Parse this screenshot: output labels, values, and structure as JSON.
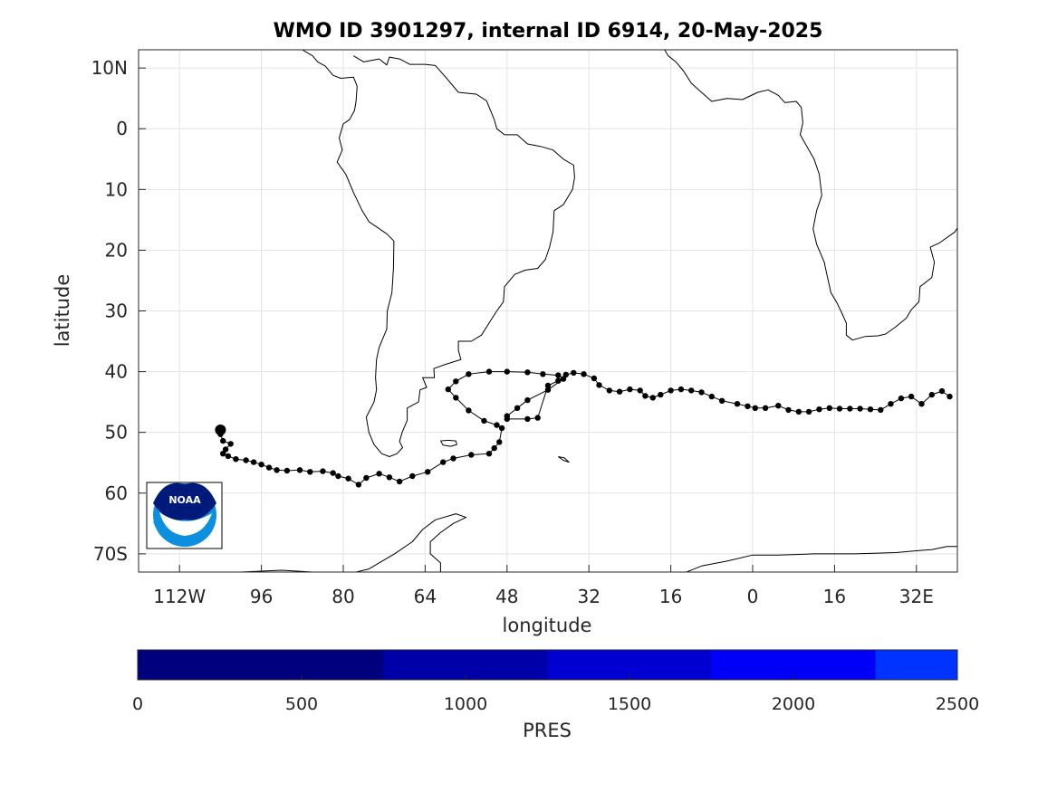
{
  "title": "WMO ID 3901297, internal ID 6914, 20-May-2025",
  "xlabel": "longitude",
  "ylabel": "latitude",
  "colors": {
    "track": "#000000",
    "coast": "#000000",
    "grid": "#e3e3e3",
    "colorbar": [
      "#00007f",
      "#0000a8",
      "#0000d1",
      "#0000f9",
      "#0033ff"
    ]
  },
  "chart_data": {
    "type": "scatter",
    "projection": "equirectangular",
    "xlim": [
      -120,
      40
    ],
    "ylim": [
      -73,
      13
    ],
    "grid": true,
    "x_ticks": [
      {
        "value": -112,
        "label": "112W"
      },
      {
        "value": -96,
        "label": "96"
      },
      {
        "value": -80,
        "label": "80"
      },
      {
        "value": -64,
        "label": "64"
      },
      {
        "value": -48,
        "label": "48"
      },
      {
        "value": -32,
        "label": "32"
      },
      {
        "value": -16,
        "label": "16"
      },
      {
        "value": 0,
        "label": "0"
      },
      {
        "value": 16,
        "label": "16"
      },
      {
        "value": 32,
        "label": "32E"
      }
    ],
    "y_ticks": [
      {
        "value": 10,
        "label": "10N"
      },
      {
        "value": 0,
        "label": "0"
      },
      {
        "value": -10,
        "label": "10"
      },
      {
        "value": -20,
        "label": "20"
      },
      {
        "value": -30,
        "label": "30"
      },
      {
        "value": -40,
        "label": "40"
      },
      {
        "value": -50,
        "label": "50"
      },
      {
        "value": -60,
        "label": "60"
      },
      {
        "value": -70,
        "label": "70S"
      }
    ],
    "float_track": {
      "lon": [
        -104,
        -104,
        -103.5,
        -102,
        -103,
        -103.5,
        -102.5,
        -101,
        -99,
        -97.5,
        -96,
        -94.5,
        -93,
        -91,
        -88.5,
        -86.5,
        -84,
        -82,
        -81,
        -79,
        -77,
        -75.5,
        -73,
        -71,
        -69,
        -66.5,
        -63.5,
        -60.5,
        -58.5,
        -55,
        -51.5,
        -50.5,
        -49.5,
        -49,
        -50,
        -52.5,
        -55.5,
        -58,
        -59.5,
        -58,
        -55.5,
        -51.5,
        -48,
        -44,
        -41,
        -38,
        -37,
        -40,
        -44,
        -46,
        -48,
        -48,
        -44,
        -42,
        -40,
        -38,
        -36.5,
        -35,
        -33,
        -31,
        -30,
        -28,
        -26,
        -24,
        -22,
        -21,
        -19.5,
        -18,
        -16,
        -14,
        -12,
        -10,
        -8,
        -6,
        -3,
        -1,
        0.5,
        2.5,
        5,
        7,
        9,
        11,
        13,
        15,
        17,
        19,
        21,
        23,
        25,
        27,
        29,
        31,
        33,
        35,
        37,
        38.5
      ],
      "lat": [
        -49.6,
        -50.3,
        -51.4,
        -51.9,
        -52.8,
        -53.5,
        -53.9,
        -54.4,
        -54.6,
        -54.9,
        -55.3,
        -55.8,
        -56.2,
        -56.3,
        -56.2,
        -56.5,
        -56.4,
        -56.7,
        -57.2,
        -57.6,
        -58.6,
        -57.5,
        -56.8,
        -57.4,
        -58.1,
        -57.2,
        -56.5,
        -54.9,
        -54.3,
        -53.7,
        -53.5,
        -52.6,
        -51.6,
        -49.3,
        -48.8,
        -48.1,
        -46.4,
        -44.3,
        -42.9,
        -41.6,
        -40.4,
        -40.0,
        -40.0,
        -40.1,
        -40.4,
        -40.6,
        -41.2,
        -43.0,
        -44.7,
        -46.0,
        -47.3,
        -47.8,
        -47.8,
        -47.6,
        -42.3,
        -41.5,
        -40.5,
        -40.2,
        -40.4,
        -41.1,
        -42.2,
        -43.1,
        -43.3,
        -42.9,
        -43.1,
        -44.0,
        -44.3,
        -43.8,
        -43.1,
        -42.9,
        -43.1,
        -43.4,
        -44.1,
        -44.8,
        -45.3,
        -45.7,
        -46.0,
        -46.0,
        -45.6,
        -46.3,
        -46.6,
        -46.6,
        -46.2,
        -46.0,
        -46.1,
        -46.1,
        -46.1,
        -46.2,
        -46.3,
        -45.3,
        -44.4,
        -44.1,
        -45.3,
        -43.8,
        -43.2,
        -44.1
      ]
    },
    "colorbar": {
      "label": "PRES",
      "range": [
        0,
        2500
      ],
      "ticks": [
        0,
        500,
        1000,
        1500,
        2000,
        2500
      ],
      "levels": [
        0,
        750,
        1250,
        1750,
        2250,
        2500
      ]
    }
  },
  "coastlines": {
    "south_america": [
      [
        -78,
        12
      ],
      [
        -76,
        11
      ],
      [
        -73,
        11.5
      ],
      [
        -71.5,
        10.5
      ],
      [
        -71,
        11.8
      ],
      [
        -69,
        11.5
      ],
      [
        -67,
        10.6
      ],
      [
        -64,
        10.6
      ],
      [
        -62,
        10.4
      ],
      [
        -60,
        8.5
      ],
      [
        -57.5,
        6
      ],
      [
        -54,
        5.7
      ],
      [
        -52,
        4.6
      ],
      [
        -50.5,
        1.5
      ],
      [
        -50,
        0
      ],
      [
        -48.5,
        -1
      ],
      [
        -46,
        -1
      ],
      [
        -44,
        -2.5
      ],
      [
        -41.5,
        -2.9
      ],
      [
        -39,
        -3.5
      ],
      [
        -37,
        -5
      ],
      [
        -35,
        -6
      ],
      [
        -34.8,
        -8
      ],
      [
        -35.2,
        -10
      ],
      [
        -37,
        -12.5
      ],
      [
        -38.8,
        -13.5
      ],
      [
        -39,
        -17
      ],
      [
        -39.7,
        -19.5
      ],
      [
        -40.5,
        -21.5
      ],
      [
        -42,
        -23
      ],
      [
        -44.5,
        -23.3
      ],
      [
        -46.5,
        -24
      ],
      [
        -48.5,
        -26
      ],
      [
        -48.7,
        -28.5
      ],
      [
        -50,
        -30
      ],
      [
        -51.5,
        -32
      ],
      [
        -53,
        -34
      ],
      [
        -55,
        -35
      ],
      [
        -57.5,
        -35
      ],
      [
        -57.5,
        -36.5
      ],
      [
        -57,
        -38
      ],
      [
        -60,
        -38.8
      ],
      [
        -62.3,
        -39.5
      ],
      [
        -62.2,
        -41
      ],
      [
        -64.5,
        -41
      ],
      [
        -63.7,
        -42.6
      ],
      [
        -65,
        -43
      ],
      [
        -65.3,
        -45
      ],
      [
        -67.5,
        -46
      ],
      [
        -67.5,
        -48
      ],
      [
        -68.5,
        -50
      ],
      [
        -69,
        -51.5
      ],
      [
        -68.4,
        -52.5
      ],
      [
        -69.5,
        -53.5
      ],
      [
        -71,
        -54
      ],
      [
        -72.5,
        -53.5
      ],
      [
        -74,
        -52
      ],
      [
        -75,
        -50
      ],
      [
        -75.5,
        -47.5
      ],
      [
        -74,
        -45
      ],
      [
        -73.5,
        -43
      ],
      [
        -73.7,
        -41
      ],
      [
        -73.5,
        -38
      ],
      [
        -73,
        -36
      ],
      [
        -71.5,
        -33
      ],
      [
        -71.4,
        -30
      ],
      [
        -70.5,
        -27
      ],
      [
        -70.2,
        -23
      ],
      [
        -70.1,
        -18.5
      ],
      [
        -71.5,
        -17.3
      ],
      [
        -75,
        -15.3
      ],
      [
        -76.3,
        -13.5
      ],
      [
        -78,
        -10.5
      ],
      [
        -79.5,
        -7.5
      ],
      [
        -81.2,
        -5.5
      ],
      [
        -80.2,
        -3.5
      ],
      [
        -80.8,
        -1.5
      ],
      [
        -80,
        0.8
      ],
      [
        -78.8,
        1.5
      ],
      [
        -77.8,
        3
      ],
      [
        -77.5,
        4.5
      ],
      [
        -77.3,
        7
      ],
      [
        -78,
        8.5
      ],
      [
        -80.5,
        8.3
      ],
      [
        -82,
        8.8
      ],
      [
        -83.5,
        10.3
      ],
      [
        -85,
        11
      ],
      [
        -86,
        12
      ],
      [
        -88,
        13
      ]
    ],
    "africa": [
      [
        -17.2,
        13
      ],
      [
        -16.5,
        12
      ],
      [
        -15,
        11
      ],
      [
        -13.5,
        9.5
      ],
      [
        -12,
        7.5
      ],
      [
        -10,
        6
      ],
      [
        -8,
        4.5
      ],
      [
        -5,
        5
      ],
      [
        -2,
        4.8
      ],
      [
        1,
        6
      ],
      [
        3,
        6.4
      ],
      [
        5,
        5.5
      ],
      [
        6.3,
        4.3
      ],
      [
        8.5,
        4.5
      ],
      [
        9.5,
        3.5
      ],
      [
        9.8,
        1
      ],
      [
        9.3,
        -1
      ],
      [
        11,
        -3.5
      ],
      [
        12,
        -5
      ],
      [
        13,
        -7.5
      ],
      [
        13.5,
        -11
      ],
      [
        12.5,
        -13.5
      ],
      [
        11.8,
        -16.5
      ],
      [
        12.5,
        -19
      ],
      [
        14,
        -22
      ],
      [
        14.5,
        -24
      ],
      [
        15.3,
        -27
      ],
      [
        16.5,
        -28.7
      ],
      [
        17.5,
        -30.5
      ],
      [
        18.3,
        -32
      ],
      [
        18.3,
        -34
      ],
      [
        19.5,
        -34.8
      ],
      [
        22,
        -34.2
      ],
      [
        24.5,
        -34.1
      ],
      [
        26,
        -33.8
      ],
      [
        28,
        -32.6
      ],
      [
        30,
        -31.2
      ],
      [
        31,
        -29.8
      ],
      [
        32.5,
        -28.5
      ],
      [
        32.7,
        -26
      ],
      [
        35,
        -24.5
      ],
      [
        35.5,
        -22
      ],
      [
        34.7,
        -19.5
      ],
      [
        36.5,
        -18.8
      ],
      [
        39.5,
        -17
      ],
      [
        41,
        -15
      ]
    ],
    "madagascar": [
      [
        44,
        -25
      ],
      [
        45.1,
        -25.5
      ],
      [
        47.2,
        -24.8
      ],
      [
        48.5,
        -20
      ],
      [
        49.5,
        -15.5
      ],
      [
        49.8,
        -12
      ],
      [
        48.8,
        -13
      ],
      [
        47.5,
        -14.7
      ],
      [
        46,
        -15.7
      ],
      [
        44.2,
        -17
      ],
      [
        44,
        -19.5
      ],
      [
        43.4,
        -22
      ],
      [
        43.7,
        -24
      ],
      [
        44,
        -25
      ]
    ],
    "antarctica": [
      [
        -120,
        -73.6
      ],
      [
        -110,
        -73.8
      ],
      [
        -100,
        -73
      ],
      [
        -92,
        -72.7
      ],
      [
        -86,
        -73
      ],
      [
        -80,
        -73.5
      ],
      [
        -75,
        -72.5
      ],
      [
        -70,
        -70
      ],
      [
        -66.5,
        -68
      ],
      [
        -64.5,
        -66
      ],
      [
        -62,
        -64.4
      ],
      [
        -58,
        -63.4
      ],
      [
        -56,
        -64
      ],
      [
        -58.5,
        -65
      ],
      [
        -61,
        -66.5
      ],
      [
        -63,
        -68
      ],
      [
        -63,
        -70
      ],
      [
        -61,
        -71.5
      ],
      [
        -61,
        -73
      ],
      [
        -55,
        -73.5
      ],
      [
        -40,
        -74
      ],
      [
        -25,
        -74
      ],
      [
        -20,
        -74
      ],
      [
        -15,
        -73.7
      ],
      [
        -10,
        -72
      ],
      [
        -5,
        -71.2
      ],
      [
        0,
        -70.2
      ],
      [
        5,
        -70.2
      ],
      [
        12,
        -70
      ],
      [
        20,
        -70
      ],
      [
        28,
        -69.8
      ],
      [
        32,
        -69.5
      ],
      [
        35,
        -69.3
      ],
      [
        38,
        -68.8
      ],
      [
        40,
        -68.8
      ]
    ],
    "falklands": [
      [
        -61,
        -51.4
      ],
      [
        -59.5,
        -51.3
      ],
      [
        -58,
        -51.4
      ],
      [
        -57.8,
        -52
      ],
      [
        -59,
        -52.3
      ],
      [
        -60.5,
        -52.1
      ],
      [
        -61,
        -51.4
      ]
    ],
    "south_georgia": [
      [
        -38,
        -54
      ],
      [
        -36.8,
        -54.2
      ],
      [
        -35.9,
        -54.9
      ],
      [
        -37,
        -54.6
      ],
      [
        -38,
        -54
      ]
    ]
  }
}
